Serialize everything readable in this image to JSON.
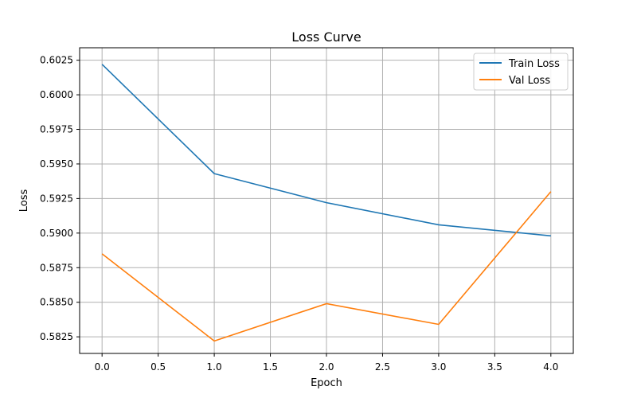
{
  "chart_data": {
    "type": "line",
    "title": "Loss Curve",
    "xlabel": "Epoch",
    "ylabel": "Loss",
    "x": [
      0,
      1,
      2,
      3,
      4
    ],
    "xlim": [
      -0.2,
      4.2
    ],
    "ylim": [
      0.5813,
      0.6034
    ],
    "xticks": [
      0.0,
      0.5,
      1.0,
      1.5,
      2.0,
      2.5,
      3.0,
      3.5,
      4.0
    ],
    "xtick_labels": [
      "0.0",
      "0.5",
      "1.0",
      "1.5",
      "2.0",
      "2.5",
      "3.0",
      "3.5",
      "4.0"
    ],
    "yticks": [
      0.5825,
      0.585,
      0.5875,
      0.59,
      0.5925,
      0.595,
      0.5975,
      0.6,
      0.6025
    ],
    "ytick_labels": [
      "0.5825",
      "0.5850",
      "0.5875",
      "0.5900",
      "0.5925",
      "0.5950",
      "0.5975",
      "0.6000",
      "0.6025"
    ],
    "grid": true,
    "legend_position": "top-right",
    "series": [
      {
        "name": "Train Loss",
        "color": "#1f77b4",
        "values": [
          0.6022,
          0.5943,
          0.5922,
          0.5906,
          0.5898
        ]
      },
      {
        "name": "Val Loss",
        "color": "#ff7f0e",
        "values": [
          0.5885,
          0.5822,
          0.5849,
          0.5834,
          0.593
        ]
      }
    ]
  }
}
